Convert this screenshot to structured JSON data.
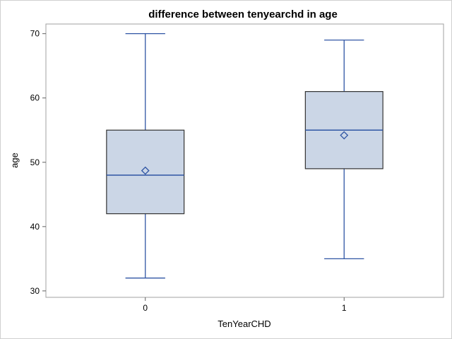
{
  "chart_data": {
    "type": "box",
    "title": "difference between tenyearchd in age",
    "xlabel": "TenYearCHD",
    "ylabel": "age",
    "ylim": [
      29,
      71.5
    ],
    "yticks": [
      30,
      40,
      50,
      60,
      70
    ],
    "categories": [
      "0",
      "1"
    ],
    "boxes": [
      {
        "category": "0",
        "min": 32,
        "q1": 42,
        "median": 48,
        "q3": 55,
        "max": 70,
        "mean": 48.7
      },
      {
        "category": "1",
        "min": 35,
        "q1": 49,
        "median": 55,
        "q3": 61,
        "max": 69,
        "mean": 54.2
      }
    ],
    "colors": {
      "box_fill": "#cbd6e6",
      "box_edge": "#333333",
      "whisker": "#2f55a4",
      "median": "#2f55a4",
      "mean_marker": "#2f55a4"
    },
    "grid": false,
    "legend": "none"
  }
}
